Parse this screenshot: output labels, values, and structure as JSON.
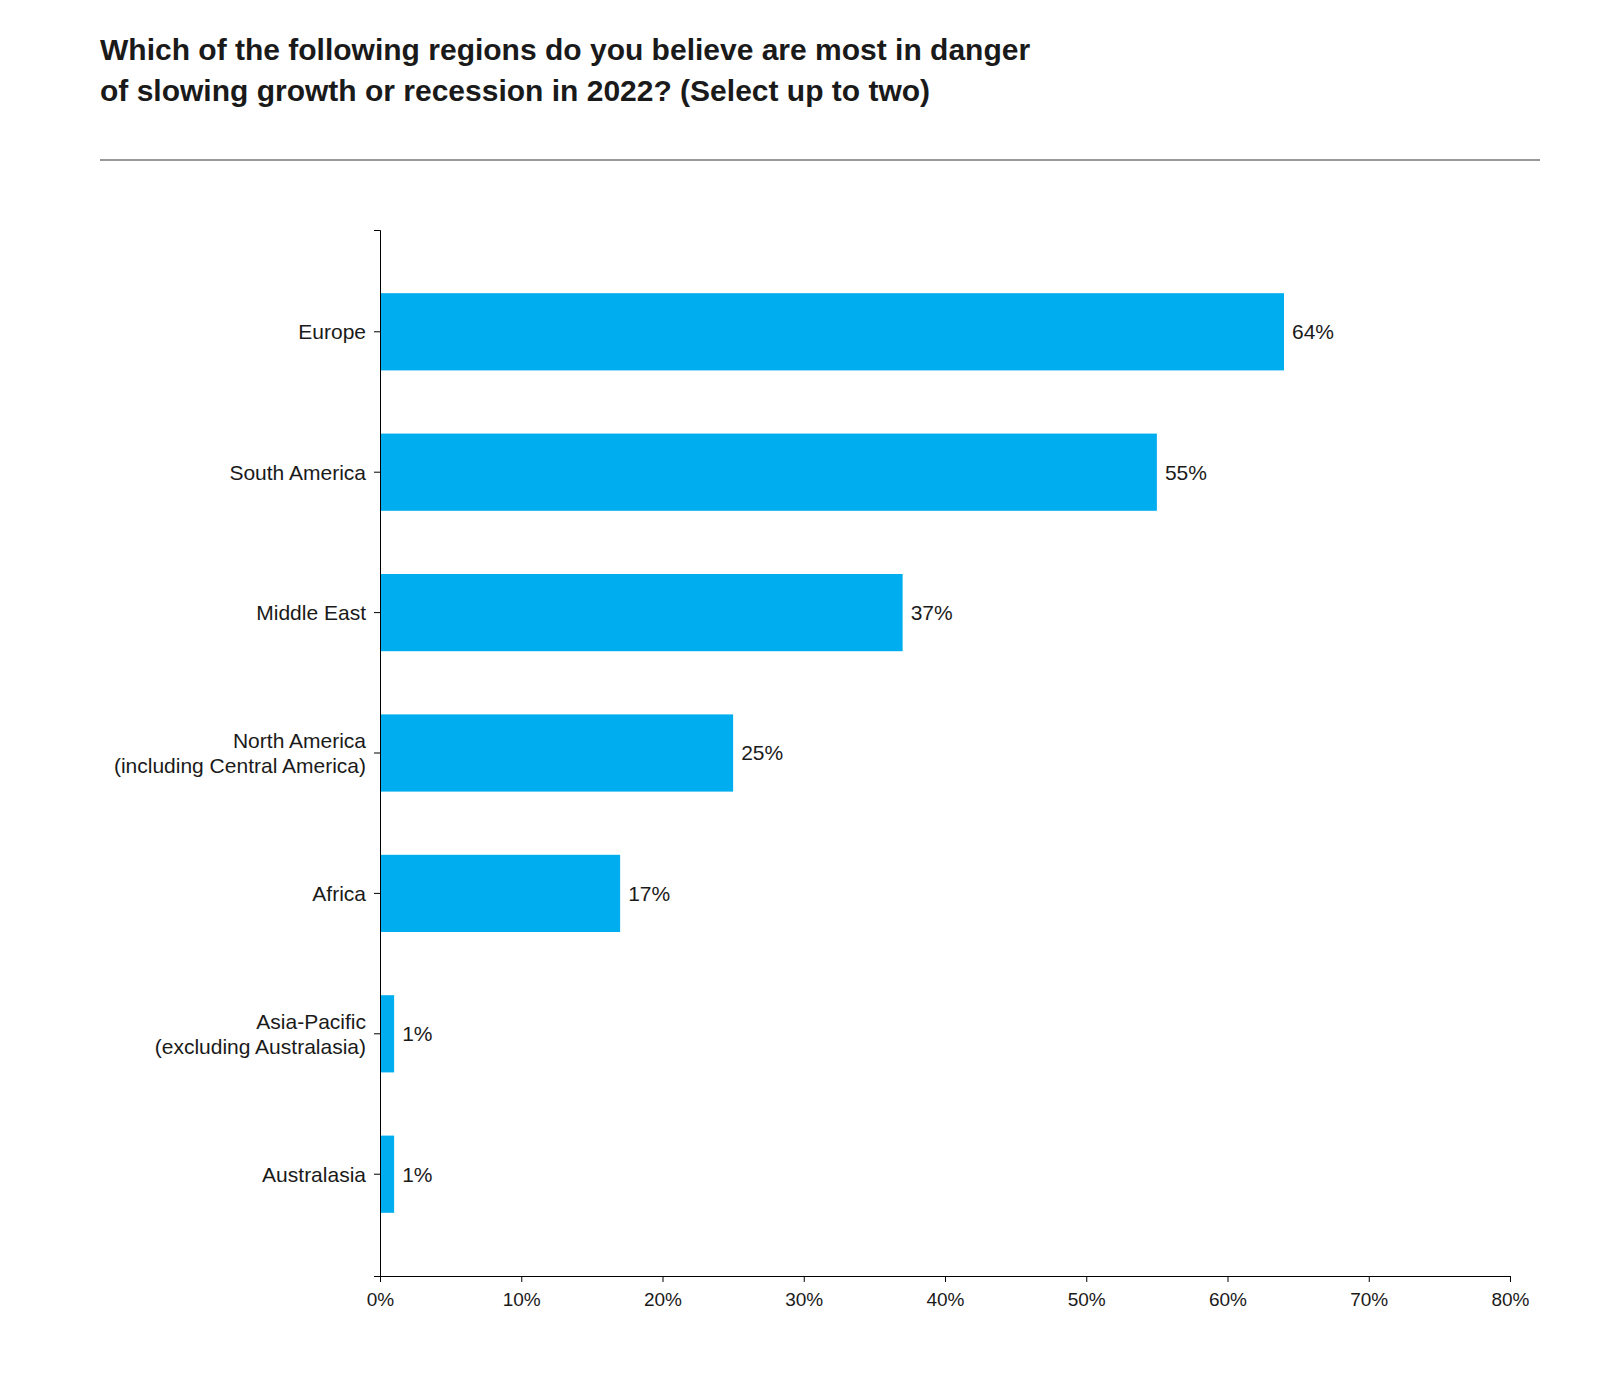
{
  "chart_data": {
    "type": "bar",
    "orientation": "horizontal",
    "title": "Which of the following regions do you believe are most in danger\nof slowing growth or recession in 2022? (Select up to two)",
    "categories": [
      "Australasia",
      "Asia-Pacific\n(excluding Australasia)",
      "Africa",
      "North America\n(including Central America)",
      "Middle East",
      "South America",
      "Europe"
    ],
    "values": [
      1,
      1,
      17,
      25,
      37,
      55,
      64
    ],
    "value_labels": [
      "1%",
      "1%",
      "17%",
      "25%",
      "37%",
      "55%",
      "64%"
    ],
    "data_labels": true,
    "color": "#00AEEF",
    "xlim": [
      0,
      80
    ],
    "xticks": [
      {
        "value": 0,
        "label": "0%"
      },
      {
        "value": 10,
        "label": "10%"
      },
      {
        "value": 20,
        "label": "20%"
      },
      {
        "value": 30,
        "label": "30%"
      },
      {
        "value": 40,
        "label": "40%"
      },
      {
        "value": 50,
        "label": "50%"
      },
      {
        "value": 60,
        "label": "60%"
      },
      {
        "value": 70,
        "label": "70%"
      },
      {
        "value": 80,
        "label": "80%"
      }
    ],
    "grid": false
  }
}
